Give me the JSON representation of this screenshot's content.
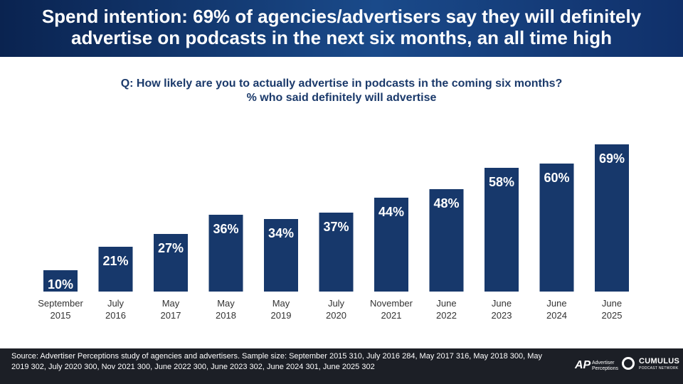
{
  "header": {
    "title": "Spend intention: 69% of agencies/advertisers say they will definitely advertise on podcasts in the next six months, an all time high"
  },
  "question": {
    "line1": "Q: How likely are you to actually advertise in podcasts in the coming six months?",
    "line2": "% who said definitely will advertise"
  },
  "colors": {
    "bar": "#17386b",
    "bar_label": "#ffffff",
    "tick_label": "#333333",
    "header_bg": "#0f2d5e",
    "footer_bg": "#1c1f26"
  },
  "chart_data": {
    "type": "bar",
    "categories": [
      "September 2015",
      "July 2016",
      "May 2017",
      "May 2018",
      "May 2019",
      "July 2020",
      "November 2021",
      "June 2022",
      "June 2023",
      "June 2024",
      "June 2025"
    ],
    "category_lines": [
      [
        "September",
        "2015"
      ],
      [
        "July",
        "2016"
      ],
      [
        "May",
        "2017"
      ],
      [
        "May",
        "2018"
      ],
      [
        "May",
        "2019"
      ],
      [
        "July",
        "2020"
      ],
      [
        "November",
        "2021"
      ],
      [
        "June",
        "2022"
      ],
      [
        "June",
        "2023"
      ],
      [
        "June",
        "2024"
      ],
      [
        "June",
        "2025"
      ]
    ],
    "values": [
      10,
      21,
      27,
      36,
      34,
      37,
      44,
      48,
      58,
      60,
      69
    ],
    "value_labels": [
      "10%",
      "21%",
      "27%",
      "36%",
      "34%",
      "37%",
      "44%",
      "48%",
      "58%",
      "60%",
      "69%"
    ],
    "ylim": [
      0,
      75
    ],
    "grid": false,
    "legend": "none"
  },
  "footer": {
    "source": "Source: Advertiser Perceptions study of agencies and advertisers. Sample size: September 2015 310, July 2016 284, May 2017 316, May 2018 300, May 2019 302, July 2020 300, Nov 2021 300, June 2022 300, June 2023 302, June 2024 301, June 2025 302",
    "logo_ap_mark": "AP",
    "logo_ap_name_line1": "Advertiser",
    "logo_ap_name_line2": "Perceptions",
    "logo_cumulus_name": "CUMULUS",
    "logo_cumulus_sub": "PODCAST NETWORK"
  }
}
